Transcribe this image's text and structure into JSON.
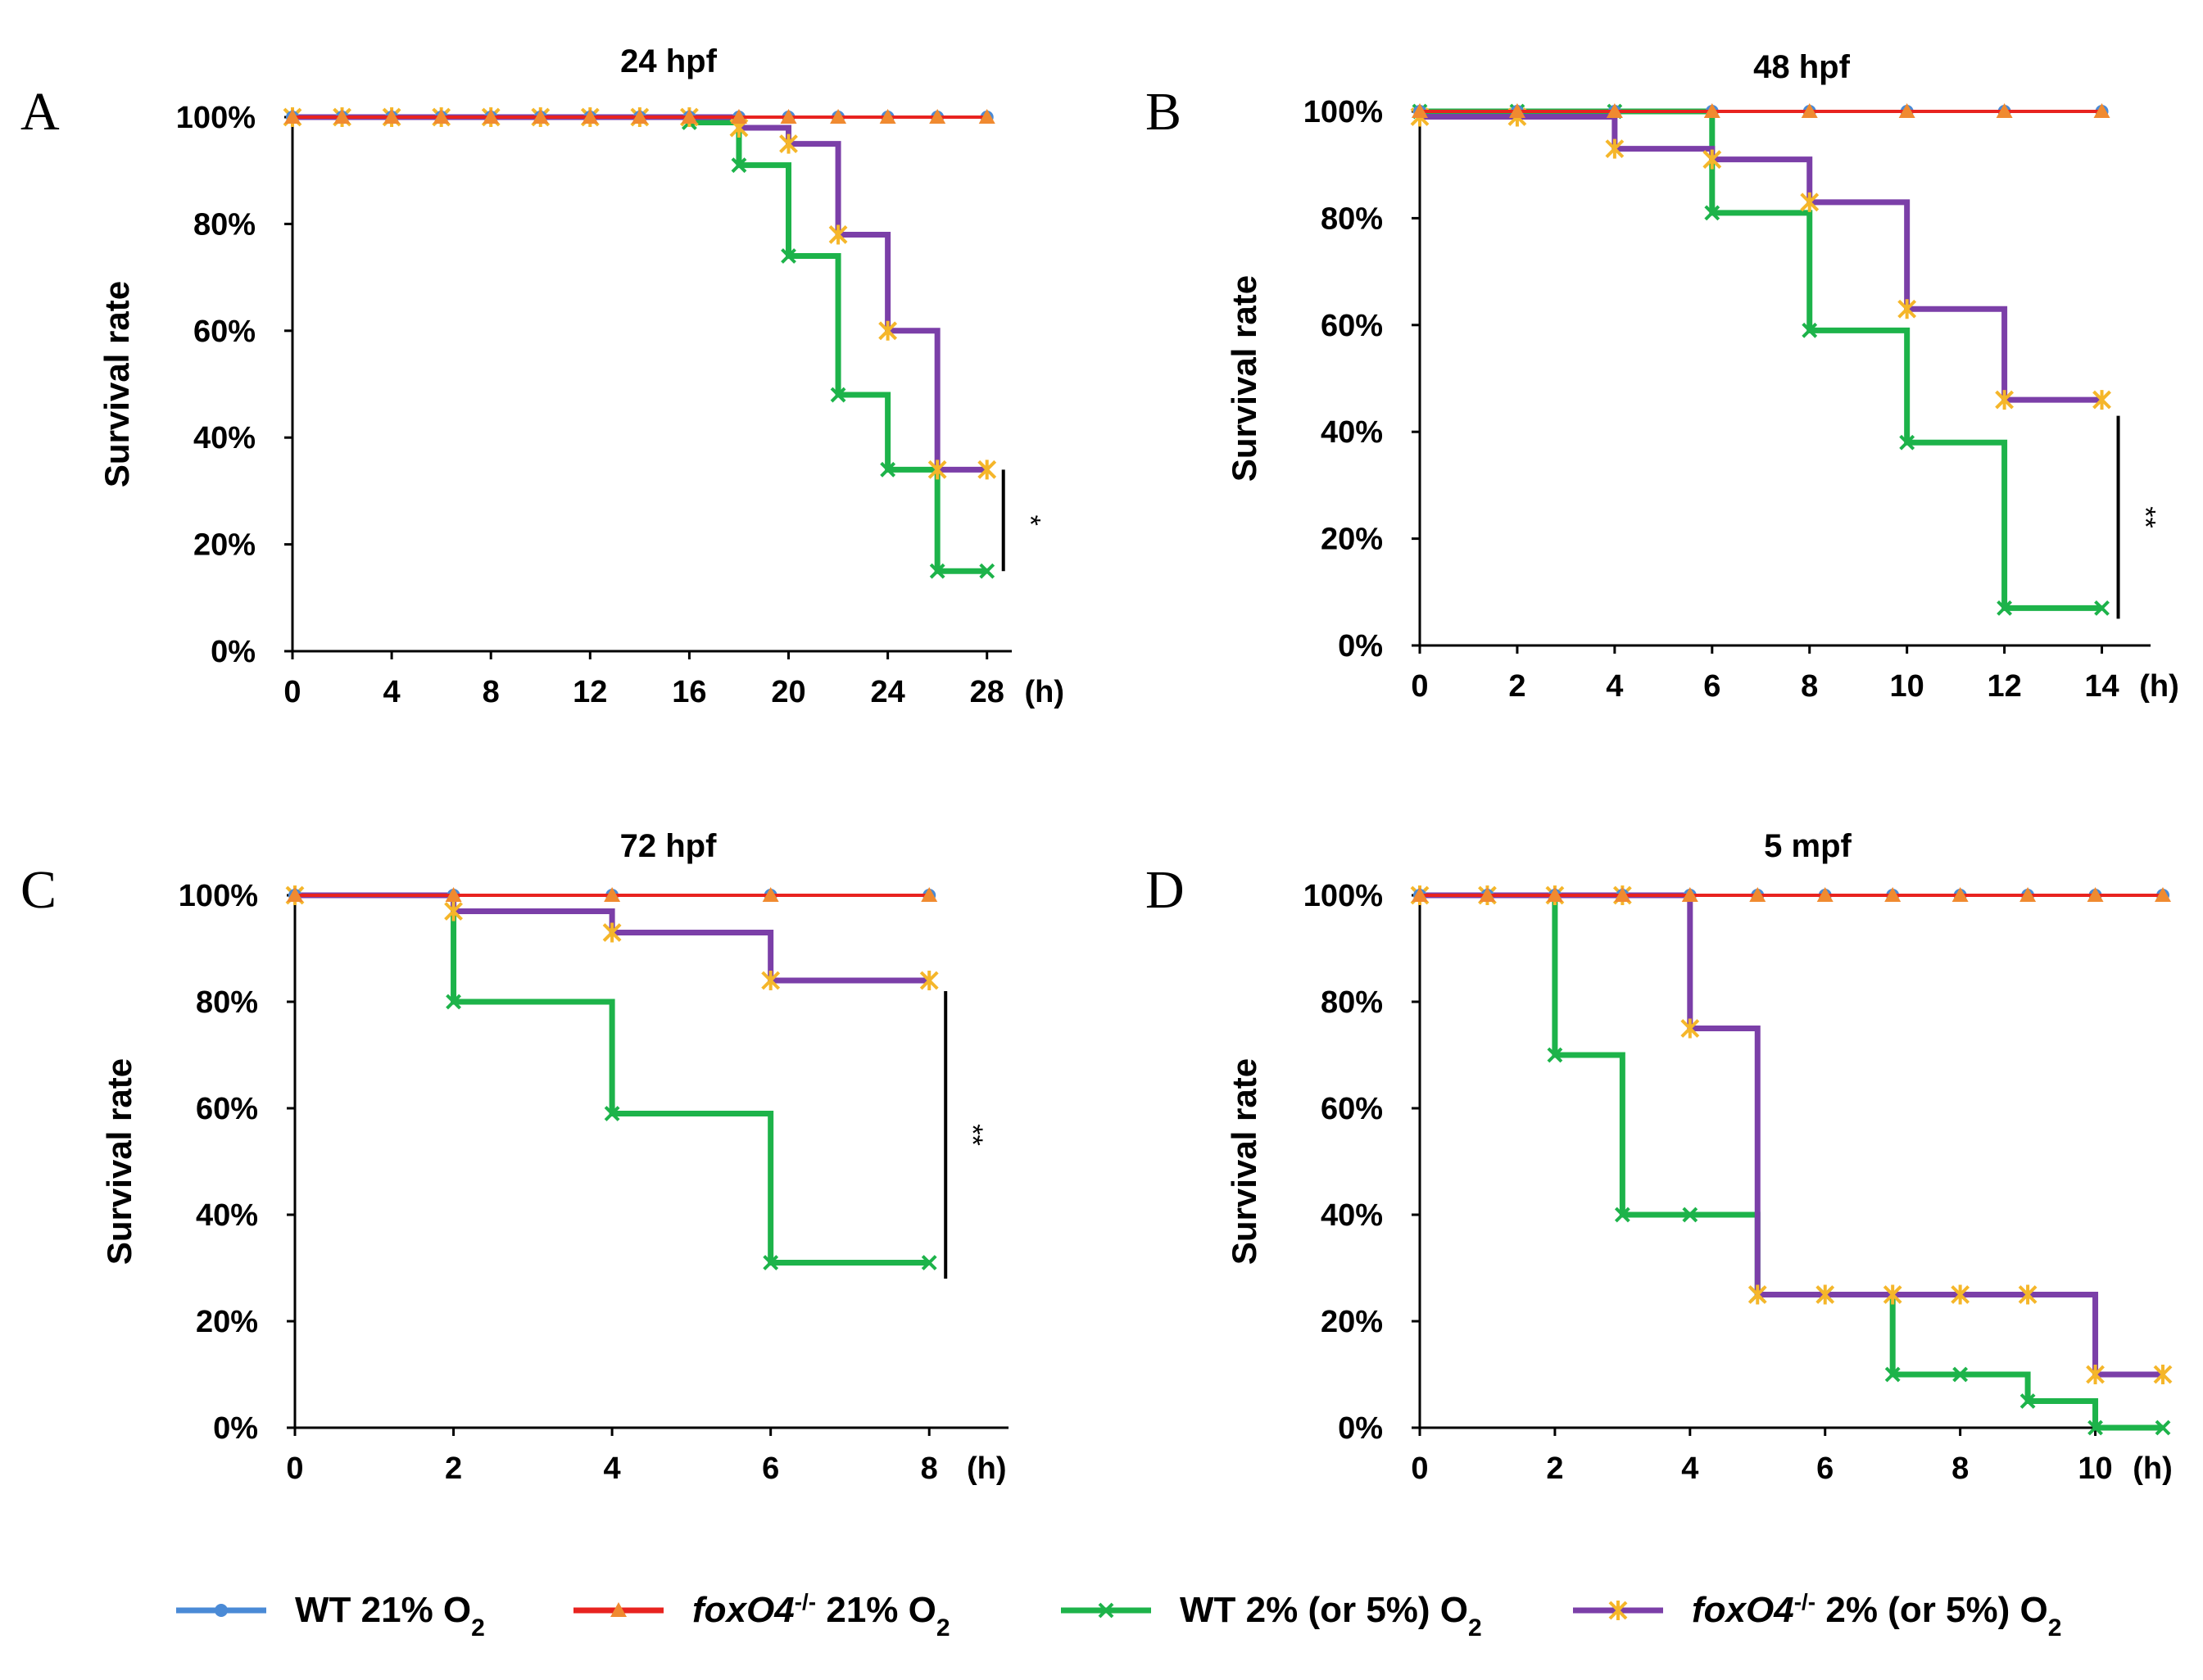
{
  "chart_data": [
    {
      "type": "line",
      "panel_letter": "A",
      "title": "24 hpf",
      "ylabel": "Survival rate",
      "x_unit": "(h)",
      "x_ticks": [
        0,
        4,
        8,
        12,
        16,
        20,
        24,
        28
      ],
      "x_tick_labels": [
        "0",
        "4",
        "8",
        "12",
        "16",
        "20",
        "24",
        "28"
      ],
      "xlim": [
        0,
        29
      ],
      "y_ticks": [
        0,
        20,
        40,
        60,
        80,
        100
      ],
      "y_tick_labels": [
        "0%",
        "20%",
        "40%",
        "60%",
        "80%",
        "100%"
      ],
      "ylim": [
        0,
        100
      ],
      "significance": "*",
      "sig_bracket": [
        15,
        34
      ],
      "series": [
        {
          "name": "WT 21% O2",
          "x": [
            0,
            2,
            4,
            6,
            8,
            10,
            12,
            14,
            16,
            18,
            20,
            22,
            24,
            26,
            28
          ],
          "values": [
            100,
            100,
            100,
            100,
            100,
            100,
            100,
            100,
            100,
            100,
            100,
            100,
            100,
            100,
            100
          ]
        },
        {
          "name": "foxO4-/- 21% O2",
          "x": [
            0,
            2,
            4,
            6,
            8,
            10,
            12,
            14,
            16,
            18,
            20,
            22,
            24,
            26,
            28
          ],
          "values": [
            100,
            100,
            100,
            100,
            100,
            100,
            100,
            100,
            100,
            100,
            100,
            100,
            100,
            100,
            100
          ]
        },
        {
          "name": "WT 2% (or 5%) O2",
          "x": [
            0,
            2,
            4,
            6,
            8,
            10,
            12,
            14,
            16,
            18,
            20,
            22,
            24,
            26,
            28
          ],
          "values": [
            100,
            100,
            100,
            100,
            100,
            100,
            100,
            100,
            99,
            91,
            74,
            48,
            34,
            15,
            15
          ]
        },
        {
          "name": "foxO4-/- 2% (or 5%) O2",
          "x": [
            0,
            2,
            4,
            6,
            8,
            10,
            12,
            14,
            16,
            18,
            20,
            22,
            24,
            26,
            28
          ],
          "values": [
            100,
            100,
            100,
            100,
            100,
            100,
            100,
            100,
            100,
            98,
            95,
            78,
            60,
            34,
            34
          ]
        }
      ]
    },
    {
      "type": "line",
      "panel_letter": "B",
      "title": "48 hpf",
      "ylabel": "Survival rate",
      "x_unit": "(h)",
      "x_ticks": [
        0,
        2,
        4,
        6,
        8,
        10,
        12,
        14
      ],
      "x_tick_labels": [
        "0",
        "2",
        "4",
        "6",
        "8",
        "10",
        "12",
        "14"
      ],
      "xlim": [
        0,
        15
      ],
      "y_ticks": [
        0,
        20,
        40,
        60,
        80,
        100
      ],
      "y_tick_labels": [
        "0%",
        "20%",
        "40%",
        "60%",
        "80%",
        "100%"
      ],
      "ylim": [
        0,
        100
      ],
      "significance": "**",
      "sig_bracket": [
        5,
        43
      ],
      "series": [
        {
          "name": "WT 21% O2",
          "x": [
            0,
            2,
            4,
            6,
            8,
            10,
            12,
            14
          ],
          "values": [
            100,
            100,
            100,
            100,
            100,
            100,
            100,
            100
          ]
        },
        {
          "name": "foxO4-/- 21% O2",
          "x": [
            0,
            2,
            4,
            6,
            8,
            10,
            12,
            14
          ],
          "values": [
            100,
            100,
            100,
            100,
            100,
            100,
            100,
            100
          ]
        },
        {
          "name": "WT 2% (or 5%) O2",
          "x": [
            0,
            2,
            4,
            6,
            8,
            10,
            12,
            14
          ],
          "values": [
            100,
            100,
            100,
            81,
            59,
            38,
            7,
            7
          ]
        },
        {
          "name": "foxO4-/- 2% (or 5%) O2",
          "x": [
            0,
            2,
            4,
            6,
            8,
            10,
            12,
            14
          ],
          "values": [
            99,
            99,
            93,
            91,
            83,
            63,
            46,
            46
          ]
        }
      ]
    },
    {
      "type": "line",
      "panel_letter": "C",
      "title": "72 hpf",
      "ylabel": "Survival rate",
      "x_unit": "(h)",
      "x_ticks": [
        0,
        2,
        4,
        6,
        8
      ],
      "x_tick_labels": [
        "0",
        "2",
        "4",
        "6",
        "8"
      ],
      "xlim": [
        0,
        9
      ],
      "y_ticks": [
        0,
        20,
        40,
        60,
        80,
        100
      ],
      "y_tick_labels": [
        "0%",
        "20%",
        "40%",
        "60%",
        "80%",
        "100%"
      ],
      "ylim": [
        0,
        100
      ],
      "significance": "**",
      "sig_bracket": [
        28,
        82
      ],
      "series": [
        {
          "name": "WT 21% O2",
          "x": [
            0,
            2,
            4,
            6,
            8
          ],
          "values": [
            100,
            100,
            100,
            100,
            100
          ]
        },
        {
          "name": "foxO4-/- 21% O2",
          "x": [
            0,
            2,
            4,
            6,
            8
          ],
          "values": [
            100,
            100,
            100,
            100,
            100
          ]
        },
        {
          "name": "WT 2% (or 5%) O2",
          "x": [
            0,
            2,
            4,
            6,
            8
          ],
          "values": [
            100,
            80,
            59,
            31,
            31
          ]
        },
        {
          "name": "foxO4-/- 2% (or 5%) O2",
          "x": [
            0,
            2,
            4,
            6,
            8
          ],
          "values": [
            100,
            97,
            93,
            84,
            84
          ]
        }
      ]
    },
    {
      "type": "line",
      "panel_letter": "D",
      "title": "5 mpf",
      "ylabel": "Survival rate",
      "x_unit": "(h)",
      "x_ticks": [
        0,
        2,
        4,
        6,
        8,
        10
      ],
      "x_tick_labels": [
        "0",
        "2",
        "4",
        "6",
        "8",
        "10"
      ],
      "xlim": [
        0,
        11
      ],
      "y_ticks": [
        0,
        20,
        40,
        60,
        80,
        100
      ],
      "y_tick_labels": [
        "0%",
        "20%",
        "40%",
        "60%",
        "80%",
        "100%"
      ],
      "ylim": [
        0,
        100
      ],
      "significance": "",
      "sig_bracket": null,
      "series": [
        {
          "name": "WT 21% O2",
          "x": [
            0,
            1,
            2,
            3,
            4,
            5,
            6,
            7,
            8,
            9,
            10,
            11
          ],
          "values": [
            100,
            100,
            100,
            100,
            100,
            100,
            100,
            100,
            100,
            100,
            100,
            100
          ]
        },
        {
          "name": "foxO4-/- 21% O2",
          "x": [
            0,
            1,
            2,
            3,
            4,
            5,
            6,
            7,
            8,
            9,
            10,
            11
          ],
          "values": [
            100,
            100,
            100,
            100,
            100,
            100,
            100,
            100,
            100,
            100,
            100,
            100
          ]
        },
        {
          "name": "WT 2% (or 5%) O2",
          "x": [
            0,
            1,
            2,
            3,
            4,
            5,
            6,
            7,
            8,
            9,
            10,
            11
          ],
          "values": [
            100,
            100,
            70,
            40,
            40,
            25,
            25,
            10,
            10,
            5,
            0,
            0
          ]
        },
        {
          "name": "foxO4-/- 2% (or 5%) O2",
          "x": [
            0,
            1,
            2,
            3,
            4,
            5,
            6,
            7,
            8,
            9,
            10,
            11
          ],
          "values": [
            100,
            100,
            100,
            100,
            75,
            25,
            25,
            25,
            25,
            25,
            10,
            10
          ]
        }
      ]
    }
  ],
  "legend": [
    {
      "label": "WT 21% O",
      "sub": "2",
      "color": "#4a8ad6",
      "marker": "circle"
    },
    {
      "label_italic": "foxO4",
      "sup": "-/-",
      "label": " 21% O",
      "sub": "2",
      "color": "#e8231f",
      "marker": "triangle"
    },
    {
      "label": "WT 2% (or 5%) O",
      "sub": "2",
      "color": "#1db34a",
      "marker": "x"
    },
    {
      "label_italic": "foxO4",
      "sup": "-/-",
      "label": " 2% (or 5%) O",
      "sub": "2",
      "color": "#7b3fa8",
      "marker": "star"
    }
  ],
  "colors": {
    "wt21": "#4a8ad6",
    "ko21": "#e8231f",
    "wt2": "#1db34a",
    "ko2": "#7b3fa8",
    "star_marker": "#f5b62a",
    "tri_marker": "#f08a30"
  }
}
